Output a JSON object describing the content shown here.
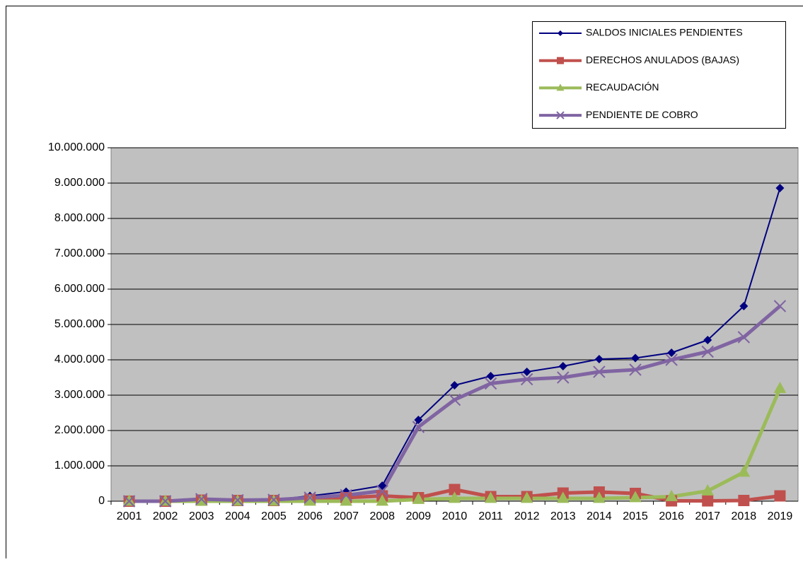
{
  "chart_data": {
    "type": "line",
    "categories": [
      "2001",
      "2002",
      "2003",
      "2004",
      "2005",
      "2006",
      "2007",
      "2008",
      "2009",
      "2010",
      "2011",
      "2012",
      "2013",
      "2014",
      "2015",
      "2016",
      "2017",
      "2018",
      "2019"
    ],
    "series": [
      {
        "name": "SALDOS INICIALES PENDIENTES",
        "color": "#000080",
        "marker": "diamond",
        "values": [
          0,
          0,
          60000,
          30000,
          40000,
          150000,
          270000,
          440000,
          2300000,
          3280000,
          3540000,
          3660000,
          3820000,
          4020000,
          4050000,
          4200000,
          4560000,
          5520000,
          8860000
        ]
      },
      {
        "name": "DERECHOS ANULADOS (BAJAS)",
        "color": "#c0504d",
        "marker": "square",
        "values": [
          0,
          0,
          30000,
          20000,
          20000,
          50000,
          100000,
          150000,
          100000,
          330000,
          130000,
          130000,
          230000,
          260000,
          220000,
          10000,
          10000,
          20000,
          150000
        ]
      },
      {
        "name": "RECAUDACIÓN",
        "color": "#9bbb59",
        "marker": "triangle",
        "values": [
          0,
          0,
          0,
          0,
          0,
          0,
          0,
          0,
          50000,
          80000,
          80000,
          80000,
          80000,
          80000,
          100000,
          130000,
          290000,
          820000,
          3190000
        ]
      },
      {
        "name": "PENDIENTE DE COBRO",
        "color": "#8064a2",
        "marker": "x",
        "values": [
          0,
          0,
          60000,
          30000,
          40000,
          100000,
          170000,
          290000,
          2100000,
          2870000,
          3330000,
          3450000,
          3500000,
          3660000,
          3720000,
          4000000,
          4230000,
          4640000,
          5520000
        ]
      }
    ],
    "ylim": [
      0,
      10000000
    ],
    "yticks": [
      0,
      {
        "value": 1000000,
        "label": "1.000.000"
      },
      {
        "value": 2000000,
        "label": "2.000.000"
      },
      {
        "value": 3000000,
        "label": "3.000.000"
      },
      {
        "value": 4000000,
        "label": "4.000.000"
      },
      {
        "value": 5000000,
        "label": "5.000.000"
      },
      {
        "value": 6000000,
        "label": "6.000.000"
      },
      {
        "value": 7000000,
        "label": "7.000.000"
      },
      {
        "value": 8000000,
        "label": "8.000.000"
      },
      {
        "value": 9000000,
        "label": "9.000.000"
      },
      {
        "value": 10000000,
        "label": "10.000.000"
      }
    ],
    "grid": true,
    "legend": "top-right",
    "plot_background": "#c0c0c0"
  }
}
